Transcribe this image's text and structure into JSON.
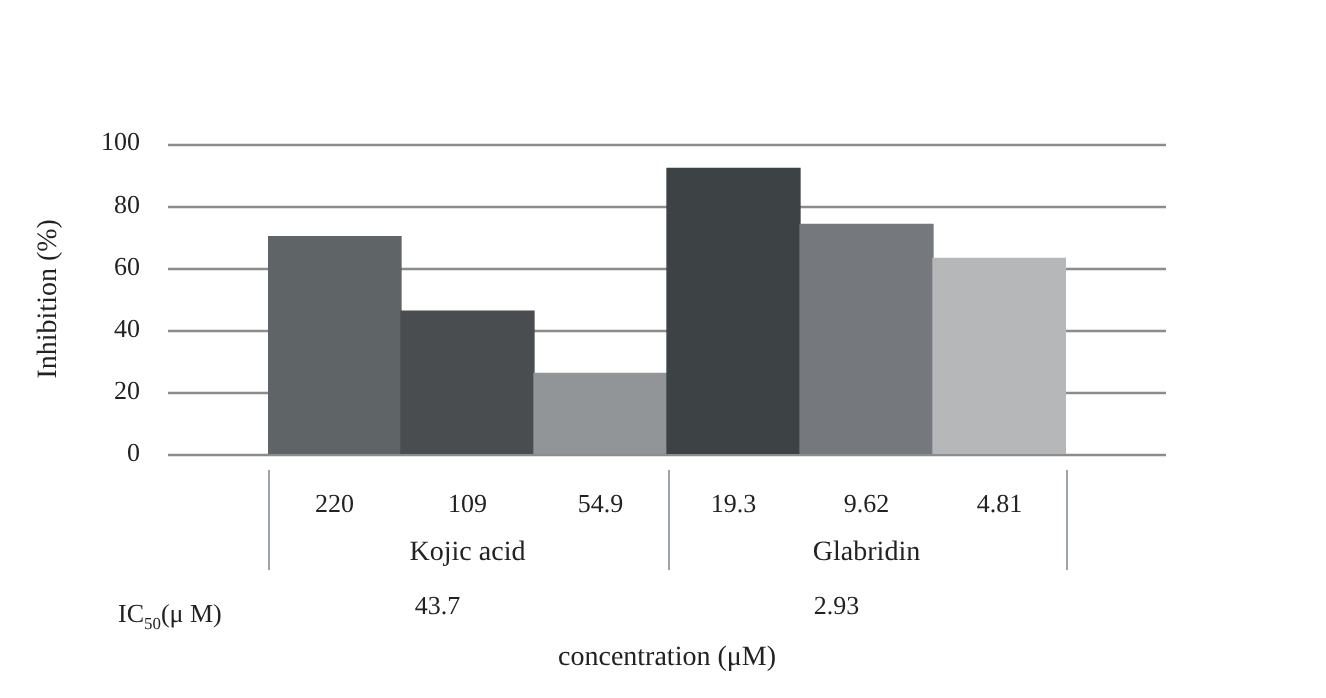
{
  "chart_data": {
    "type": "bar",
    "ylabel": "Inhibition (%)",
    "xlabel": "concentration (μM)",
    "categories": [
      "220",
      "109",
      "54.9",
      "19.3",
      "9.62",
      "4.81"
    ],
    "values": [
      70,
      46,
      26,
      92,
      74,
      63
    ],
    "colors": [
      "#5f6566",
      "#4a4d50",
      "#929597",
      "#3d4245",
      "#75787d",
      "#b5b7b9"
    ],
    "ylim": [
      0,
      100
    ],
    "yticks": [
      0,
      20,
      40,
      60,
      80,
      100
    ],
    "grid": "y",
    "legend": false,
    "annotations": [
      "Kojic acid",
      "Glabridin",
      "IC$_{50}$(μ M)",
      "43.7",
      "2.93"
    ]
  }
}
